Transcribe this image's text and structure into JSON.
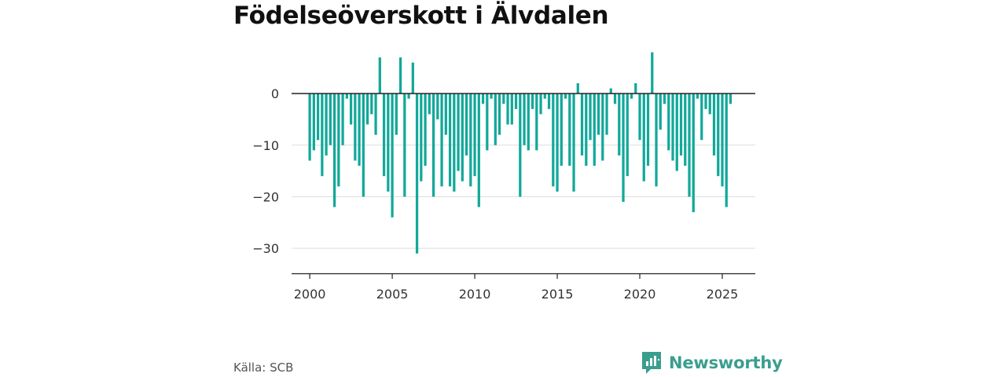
{
  "title": "Födelseöverskott i Älvdalen",
  "source": "Källa: SCB",
  "brand": {
    "name": "Newsworthy",
    "icon": "newsworthy-logo-icon",
    "color": "#3a9e8f"
  },
  "colors": {
    "bar": "#12a89a",
    "grid": "#dddddd",
    "zero_line": "#222222",
    "axis": "#222222"
  },
  "chart_data": {
    "type": "bar",
    "title": "Födelseöverskott i Älvdalen",
    "xlabel": "",
    "ylabel": "",
    "x_ticks": [
      2000,
      2005,
      2010,
      2015,
      2020,
      2025
    ],
    "y_ticks": [
      0,
      -10,
      -20,
      -30
    ],
    "y_tick_labels": [
      "0",
      "−10",
      "−20",
      "−30"
    ],
    "ylim": [
      -35,
      9
    ],
    "xlim": [
      1998.9,
      2027.0
    ],
    "grid": true,
    "series": [
      {
        "start_year": 2000,
        "periods_per_year": 4,
        "values": [
          -13,
          -11,
          -9,
          -16,
          -12,
          -10,
          -22,
          -18,
          -10,
          -1,
          -6,
          -13,
          -14,
          -20,
          -6,
          -4,
          -8,
          7,
          -16,
          -19,
          -24,
          -8,
          7,
          -20,
          -1,
          6,
          -31,
          -17,
          -14,
          -4,
          -20,
          -5,
          -18,
          -8,
          -18,
          -19,
          -15,
          -17,
          -12,
          -18,
          -16,
          -22,
          -2,
          -11,
          -1,
          -10,
          -8,
          -2,
          -6,
          -6,
          -3,
          -20,
          -10,
          -11,
          -3,
          -11,
          -4,
          -1,
          -3,
          -18,
          -19,
          -14,
          -1,
          -14,
          -19,
          2,
          -12,
          -14,
          -9,
          -14,
          -8,
          -13,
          -8,
          1,
          -2,
          -12,
          -21,
          -16,
          -1,
          2,
          -9,
          -17,
          -14,
          8,
          -18,
          -7,
          -2,
          -11,
          -13,
          -15,
          -12,
          -14,
          -20,
          -23,
          -1,
          -9,
          -3,
          -4,
          -12,
          -16,
          -18,
          -22,
          -2
        ]
      }
    ]
  }
}
